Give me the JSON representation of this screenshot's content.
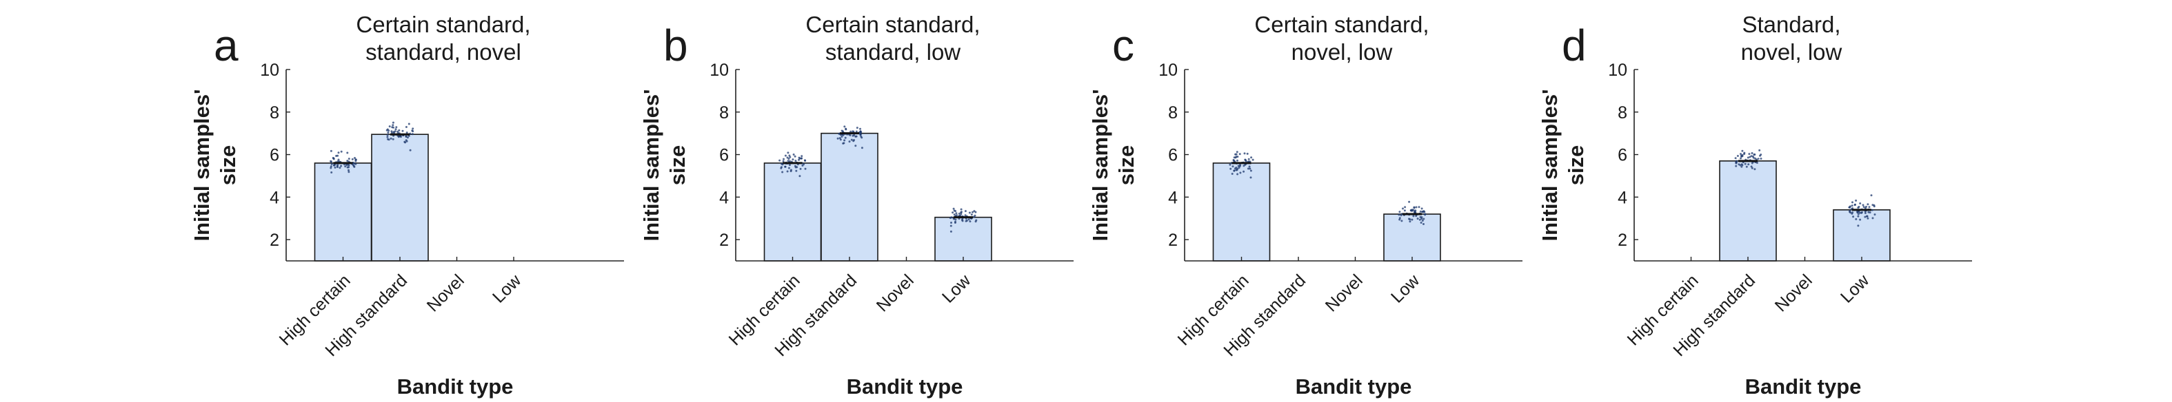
{
  "figure": {
    "xlabel": "Bandit type",
    "ylabel_lines": [
      "Initial samples'",
      "size"
    ]
  },
  "chart_data": [
    {
      "type": "bar",
      "panel_letter": "a",
      "title_lines": [
        "Certain standard,",
        "standard, novel"
      ],
      "categories": [
        "High certain",
        "High standard",
        "Novel",
        "Low"
      ],
      "values": [
        5.6,
        6.95,
        null,
        null
      ],
      "xlabel": "Bandit type",
      "ylabel": "Initial samples' size",
      "ylim": [
        1,
        10
      ],
      "yticks": [
        2,
        4,
        6,
        8,
        10
      ],
      "bar_color": "#cfe0f7",
      "point_color": "#1f3a6e",
      "grid": false
    },
    {
      "type": "bar",
      "panel_letter": "b",
      "title_lines": [
        "Certain standard,",
        "standard, low"
      ],
      "categories": [
        "High certain",
        "High standard",
        "Novel",
        "Low"
      ],
      "values": [
        5.6,
        7.0,
        null,
        3.05
      ],
      "xlabel": "Bandit type",
      "ylabel": "Initial samples' size",
      "ylim": [
        1,
        10
      ],
      "yticks": [
        2,
        4,
        6,
        8,
        10
      ],
      "bar_color": "#cfe0f7",
      "point_color": "#1f3a6e",
      "grid": false
    },
    {
      "type": "bar",
      "panel_letter": "c",
      "title_lines": [
        "Certain standard,",
        "novel, low"
      ],
      "categories": [
        "High certain",
        "High standard",
        "Novel",
        "Low"
      ],
      "values": [
        5.6,
        null,
        null,
        3.2
      ],
      "xlabel": "Bandit type",
      "ylabel": "Initial samples' size",
      "ylim": [
        1,
        10
      ],
      "yticks": [
        2,
        4,
        6,
        8,
        10
      ],
      "bar_color": "#cfe0f7",
      "point_color": "#1f3a6e",
      "grid": false
    },
    {
      "type": "bar",
      "panel_letter": "d",
      "title_lines": [
        "Standard,",
        "novel, low"
      ],
      "categories": [
        "High certain",
        "High standard",
        "Novel",
        "Low"
      ],
      "values": [
        null,
        5.7,
        null,
        3.4
      ],
      "xlabel": "Bandit type",
      "ylabel": "Initial samples' size",
      "ylim": [
        1,
        10
      ],
      "yticks": [
        2,
        4,
        6,
        8,
        10
      ],
      "bar_color": "#cfe0f7",
      "point_color": "#1f3a6e",
      "grid": false
    }
  ]
}
